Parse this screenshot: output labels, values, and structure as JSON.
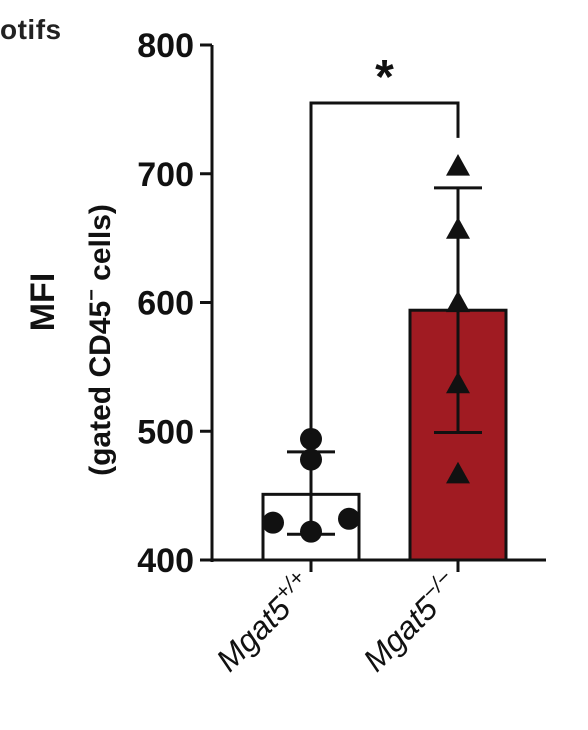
{
  "header": {
    "partial_title": "otifs"
  },
  "chart_data": {
    "type": "bar",
    "categories": [
      "Mgat5+/+",
      "Mgat5−/−"
    ],
    "category_labels": [
      {
        "base": "Mgat5",
        "sup": "+/+"
      },
      {
        "base": "Mgat5",
        "sup": "−/−"
      }
    ],
    "values": [
      451,
      594
    ],
    "error": [
      {
        "low": 420,
        "high": 484
      },
      {
        "low": 499,
        "high": 689
      }
    ],
    "points": [
      [
        494,
        478,
        429,
        422,
        432
      ],
      [
        706,
        657,
        600,
        537,
        467
      ]
    ],
    "markers": [
      "circle",
      "triangle"
    ],
    "colors": {
      "bars": [
        "#ffffff",
        "#a01b22"
      ],
      "outline": "#111111",
      "points": "#111111"
    },
    "ylabel": {
      "line1": "MFI",
      "line2_parts": [
        "(gated CD45",
        "−",
        " cells)"
      ]
    },
    "ylim": [
      400,
      800
    ],
    "yticks": [
      400,
      500,
      600,
      700,
      800
    ],
    "significance": {
      "pair": [
        0,
        1
      ],
      "label": "*",
      "y": 755
    },
    "grid": false
  }
}
